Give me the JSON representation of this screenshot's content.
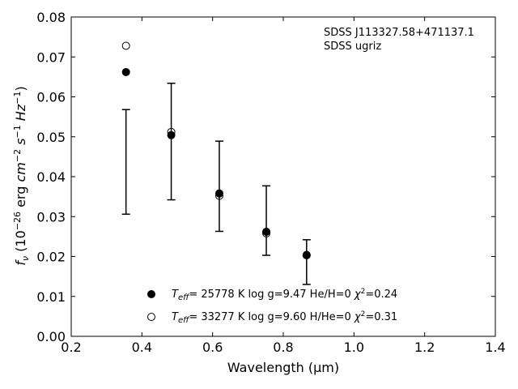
{
  "chart_data": {
    "type": "scatter",
    "xlabel": "Wavelength (μm)",
    "ylabel_parts": {
      "f": "f",
      "nu": "ν",
      "open": " (10",
      "exp1": "−26",
      "erg": " erg ",
      "cm": "cm",
      "exp2": "−2",
      "s": " s",
      "exp3": "−1",
      "hz": " Hz",
      "exp4": "−1",
      "close": ")"
    },
    "xlim": [
      0.2,
      1.4
    ],
    "ylim": [
      0.0,
      0.08
    ],
    "xticks": [
      "0.2",
      "0.4",
      "0.6",
      "0.8",
      "1.0",
      "1.2",
      "1.4"
    ],
    "yticks": [
      "0.00",
      "0.01",
      "0.02",
      "0.03",
      "0.04",
      "0.05",
      "0.06",
      "0.07",
      "0.08"
    ],
    "annotation": [
      "SDSS J113327.58+471137.1",
      "SDSS ugriz"
    ],
    "observed": {
      "x": [
        0.355,
        0.483,
        0.619,
        0.752,
        0.866
      ],
      "y": [
        0.0437,
        0.0488,
        0.0376,
        0.029,
        0.0186
      ],
      "err": [
        0.0131,
        0.0146,
        0.0113,
        0.0087,
        0.0056
      ]
    },
    "series": [
      {
        "name": "Teff=25778 K log g=9.47 He/H=0 χ2=0.24",
        "marker": "filled-circle",
        "legend": {
          "T": "T",
          "sub": "eff",
          "text": "= 25778 K  log g=9.47  He/H=0  ",
          "chi": "χ",
          "sup": "2",
          "end": "=0.24"
        },
        "x": [
          0.355,
          0.483,
          0.619,
          0.752,
          0.866
        ],
        "y": [
          0.0662,
          0.0504,
          0.0358,
          0.0262,
          0.0204
        ]
      },
      {
        "name": "Teff=33277 K log g=9.60 H/He=0 χ2=0.31",
        "marker": "open-circle",
        "legend": {
          "T": "T",
          "sub": "eff",
          "text": "= 33277 K  log g=9.60  H/He=0  ",
          "chi": "χ",
          "sup": "2",
          "end": "=0.31"
        },
        "x": [
          0.355,
          0.483,
          0.619,
          0.752,
          0.866
        ],
        "y": [
          0.0728,
          0.0512,
          0.0352,
          0.0258,
          0.0203
        ]
      }
    ]
  }
}
